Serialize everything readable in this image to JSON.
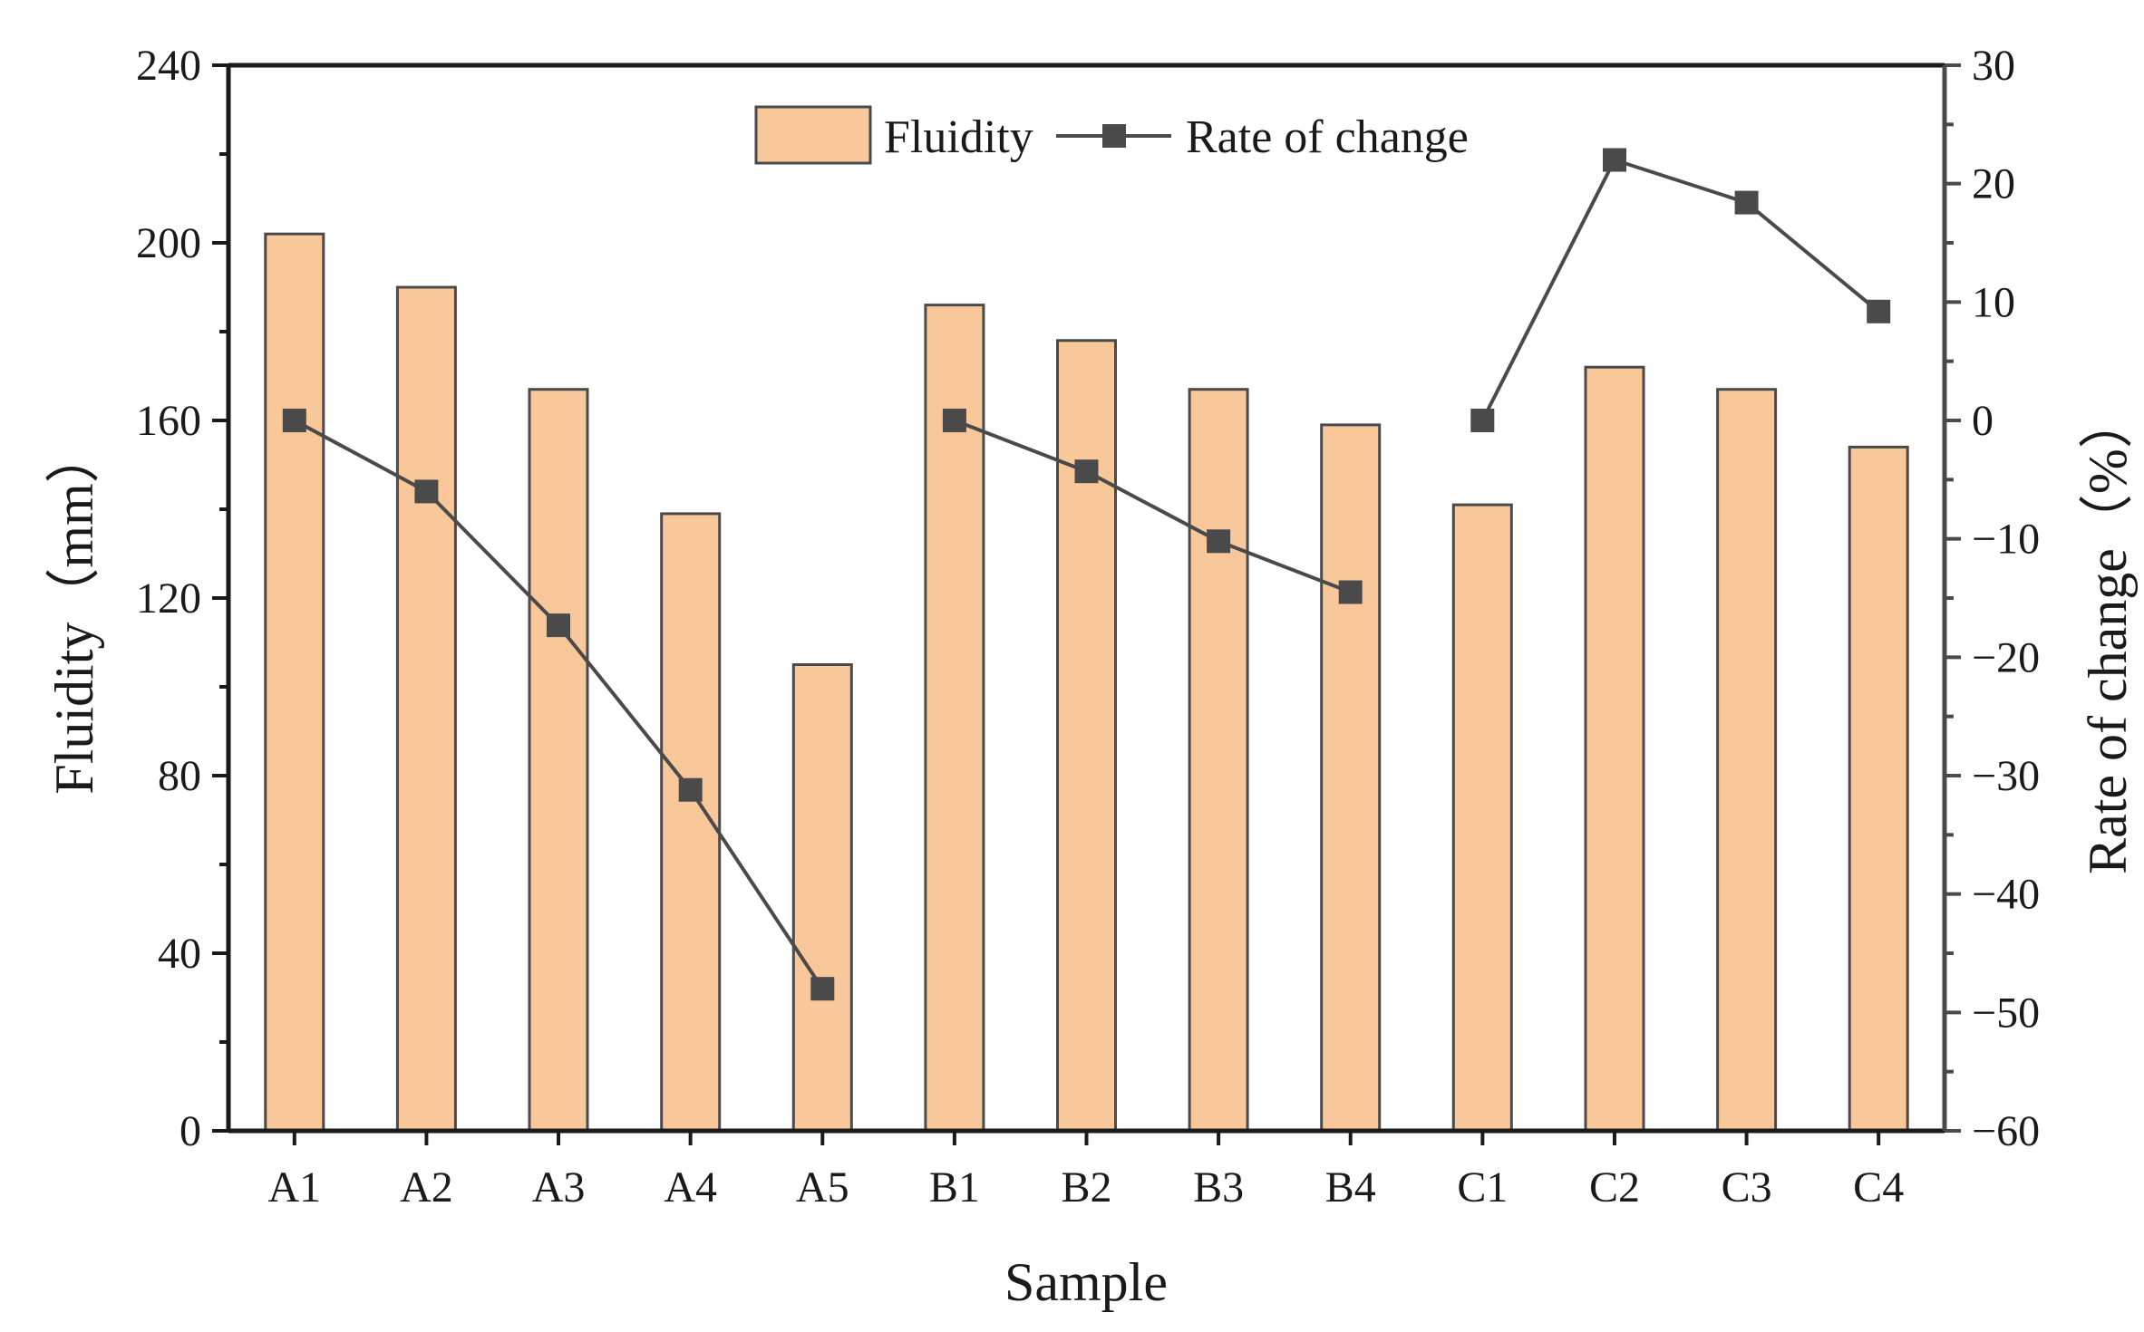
{
  "chart_data": {
    "type": "bar",
    "title": "",
    "xlabel": "Sample",
    "ylabel": "Fluidity（mm）",
    "y2label": "Rate of change（%）",
    "ylim": [
      0,
      240
    ],
    "y2lim": [
      -60,
      30
    ],
    "yticks": [
      0,
      40,
      80,
      120,
      160,
      200,
      240
    ],
    "y2ticks": [
      -60,
      -50,
      -40,
      -30,
      -20,
      -10,
      0,
      10,
      20,
      30
    ],
    "y2tick_labels": [
      "−60",
      "−50",
      "−40",
      "−30",
      "−20",
      "−10",
      "0",
      "10",
      "20",
      "30"
    ],
    "categories": [
      "A1",
      "A2",
      "A3",
      "A4",
      "A5",
      "B1",
      "B2",
      "B3",
      "B4",
      "C1",
      "C2",
      "C3",
      "C4"
    ],
    "legend_position": "top-center",
    "grid": false,
    "series": [
      {
        "name": "Fluidity",
        "kind": "bar",
        "axis": "left",
        "color": "#F9C89A",
        "values": [
          202,
          190,
          167,
          139,
          105,
          186,
          178,
          167,
          159,
          141,
          172,
          167,
          154
        ]
      },
      {
        "name": "Rate of change",
        "kind": "line",
        "axis": "right",
        "color": "#4a4a4a",
        "segments": [
          [
            0,
            4
          ],
          [
            5,
            8
          ],
          [
            9,
            12
          ]
        ],
        "values": [
          0,
          -6.0,
          -17.3,
          -31.2,
          -48.0,
          0,
          -4.3,
          -10.2,
          -14.5,
          0,
          22.0,
          18.4,
          9.2
        ]
      }
    ]
  }
}
